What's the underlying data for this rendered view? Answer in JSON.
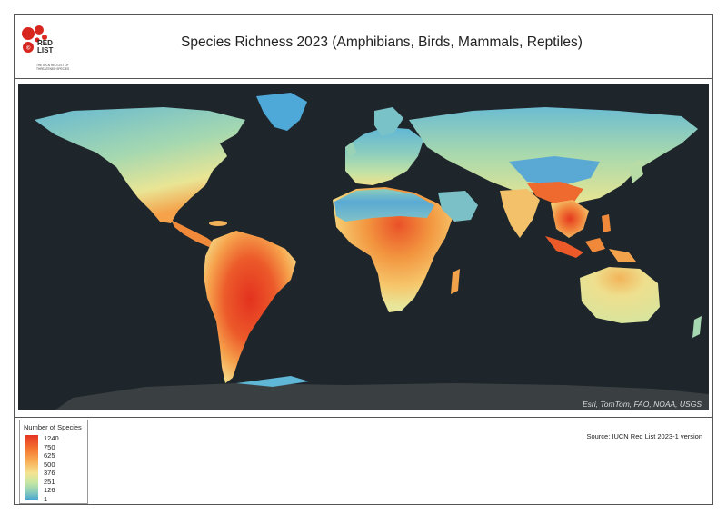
{
  "header": {
    "title": "Species Richness 2023 (Amphibians, Birds, Mammals, Reptiles)",
    "logo_text_main": "RED LIST",
    "logo_text_sub": "THE IUCN RED LIST OF THREATENED SPECIES"
  },
  "map": {
    "attribution": "Esri, TomTom, FAO, NOAA, USGS",
    "ocean_color": "#1e262b",
    "antarctica_color": "#3a3f42"
  },
  "legend": {
    "title": "Number of Species",
    "values": [
      "1240",
      "750",
      "625",
      "500",
      "376",
      "251",
      "126",
      "1"
    ],
    "high_color": "#e53422",
    "low_color": "#42a3d4"
  },
  "footer": {
    "source": "Source: IUCN Red List 2023-1 version"
  }
}
